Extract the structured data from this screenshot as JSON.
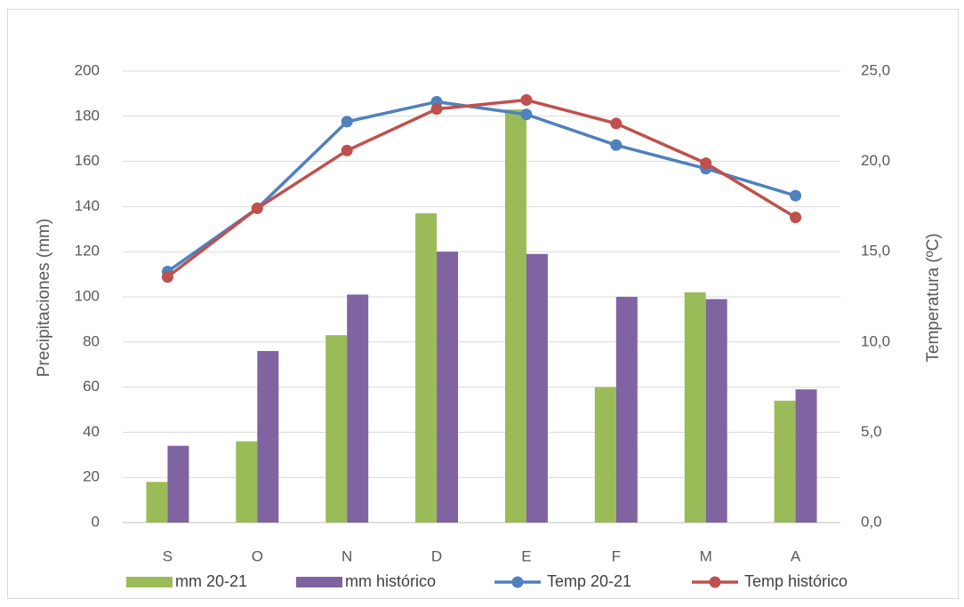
{
  "chart_data": {
    "type": "bar",
    "title": "",
    "categories": [
      "S",
      "O",
      "N",
      "D",
      "E",
      "F",
      "M",
      "A"
    ],
    "ylabel": "Precipitaciones (mm)",
    "y2label": "Temperatura (ºC)",
    "ylim": [
      0,
      200
    ],
    "y2lim": [
      0,
      25
    ],
    "y_ticks": [
      "0",
      "20",
      "40",
      "60",
      "80",
      "100",
      "120",
      "140",
      "160",
      "180",
      "200"
    ],
    "y2_ticks": [
      "0,0",
      "5,0",
      "10,0",
      "15,0",
      "20,0",
      "25,0"
    ],
    "grid": true,
    "legend_position": "bottom",
    "series": [
      {
        "name": "mm 20-21",
        "kind": "bar",
        "axis": "left",
        "color": "#9bbb59",
        "values": [
          18,
          36,
          83,
          137,
          183,
          60,
          102,
          54
        ]
      },
      {
        "name": "mm histórico",
        "kind": "bar",
        "axis": "left",
        "color": "#8064a2",
        "values": [
          34,
          76,
          101,
          120,
          119,
          100,
          99,
          59
        ]
      },
      {
        "name": "Temp 20-21",
        "kind": "line",
        "axis": "right",
        "color": "#4f81bd",
        "values": [
          13.9,
          17.4,
          22.2,
          23.3,
          22.6,
          20.9,
          19.6,
          18.1
        ]
      },
      {
        "name": "Temp histórico",
        "kind": "line",
        "axis": "right",
        "color": "#c0504d",
        "values": [
          13.6,
          17.4,
          20.6,
          22.9,
          23.4,
          22.1,
          19.9,
          16.9
        ]
      }
    ]
  }
}
